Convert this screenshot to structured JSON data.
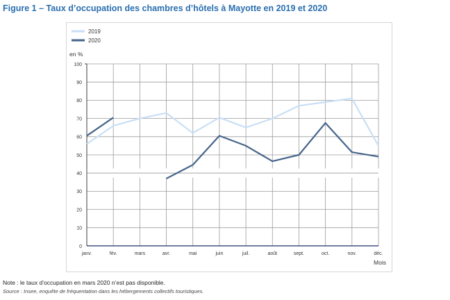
{
  "figure": {
    "title": "Figure 1 – Taux d’occupation des chambres d’hôtels à Mayotte en 2019 et 2020",
    "note": "Note : le taux d’occupation en mars 2020 n’est pas disponible.",
    "source": "Source : Insee, enquête de fréquentation dans les hébergements collectifs touristiques."
  },
  "chart_data": {
    "type": "line",
    "categories": [
      "janv.",
      "fév.",
      "mars",
      "avr.",
      "mai",
      "juin",
      "juil.",
      "août",
      "sept.",
      "oct.",
      "nov.",
      "déc."
    ],
    "series": [
      {
        "name": "2019",
        "color": "#c9dff5",
        "values": [
          56,
          66,
          70,
          73,
          62,
          70.5,
          65,
          70,
          77,
          79,
          81,
          55
        ]
      },
      {
        "name": "2020",
        "color": "#46648a",
        "values": [
          60.5,
          70.5,
          null,
          37,
          44.5,
          60.5,
          55,
          46.5,
          50,
          67.5,
          51.5,
          49
        ]
      }
    ],
    "ylabel": "en %",
    "xlabel": "Mois",
    "ylim": [
      0,
      100
    ],
    "yticks": [
      0,
      10,
      20,
      30,
      40,
      50,
      60,
      70,
      80,
      90,
      100
    ],
    "grid": true,
    "legend_position": "top-left"
  }
}
